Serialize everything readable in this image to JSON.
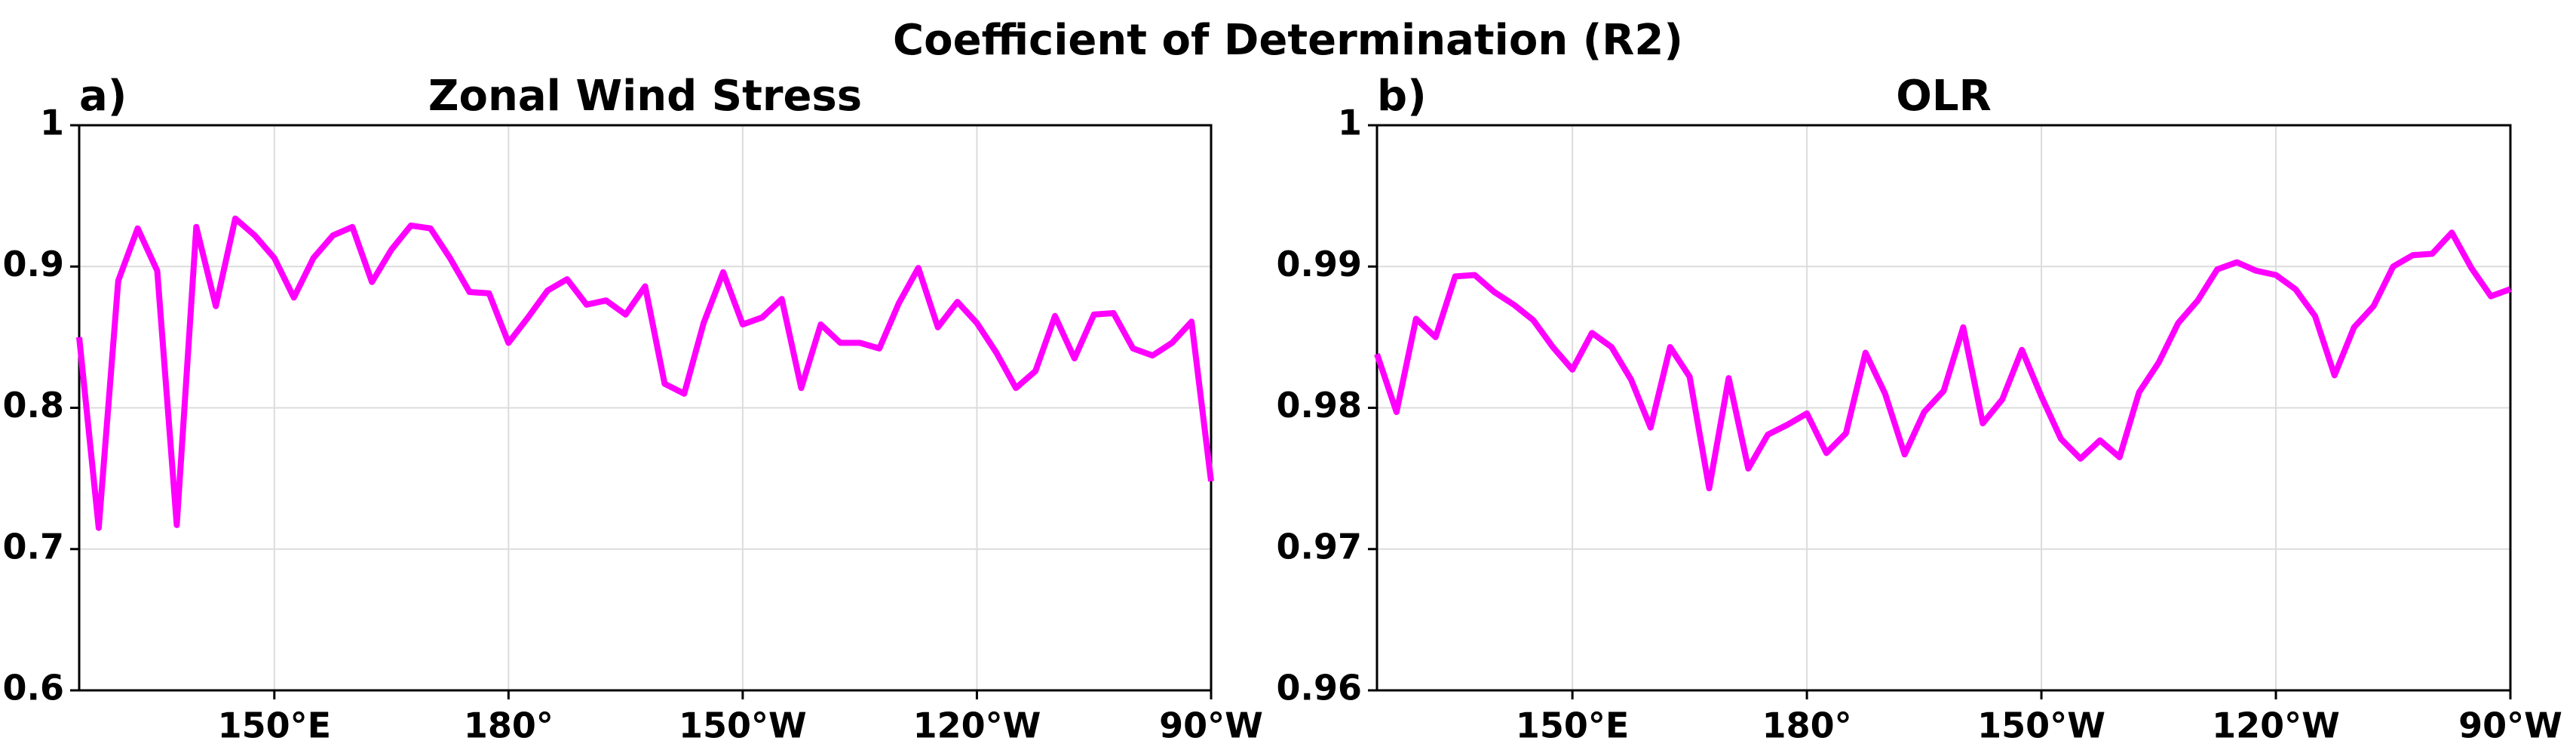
{
  "title": "Coefficient of Determination (R2)",
  "chart_data": [
    {
      "type": "line",
      "panel_label": "a)",
      "title": "Zonal Wind Stress",
      "color": "#ff00ff",
      "grid": true,
      "x": [
        125,
        127.5,
        130,
        132.5,
        135,
        137.5,
        140,
        142.5,
        145,
        147.5,
        150,
        152.5,
        155,
        157.5,
        160,
        162.5,
        165,
        167.5,
        170,
        172.5,
        175,
        177.5,
        180,
        182.5,
        185,
        187.5,
        190,
        192.5,
        195,
        197.5,
        200,
        202.5,
        205,
        207.5,
        210,
        212.5,
        215,
        217.5,
        220,
        222.5,
        225,
        227.5,
        230,
        232.5,
        235,
        237.5,
        240,
        242.5,
        245,
        247.5,
        250,
        252.5,
        255,
        257.5,
        260,
        262.5,
        265,
        267.5,
        270
      ],
      "values": [
        0.85,
        0.715,
        0.89,
        0.927,
        0.897,
        0.717,
        0.928,
        0.872,
        0.934,
        0.922,
        0.906,
        0.878,
        0.906,
        0.922,
        0.928,
        0.889,
        0.912,
        0.929,
        0.927,
        0.906,
        0.882,
        0.881,
        0.846,
        0.864,
        0.883,
        0.891,
        0.873,
        0.876,
        0.866,
        0.886,
        0.817,
        0.81,
        0.86,
        0.896,
        0.859,
        0.864,
        0.877,
        0.814,
        0.859,
        0.846,
        0.846,
        0.842,
        0.874,
        0.899,
        0.857,
        0.875,
        0.86,
        0.839,
        0.814,
        0.826,
        0.865,
        0.835,
        0.866,
        0.867,
        0.842,
        0.837,
        0.846,
        0.861,
        0.748
      ],
      "xlim": [
        125,
        270
      ],
      "xticks": [
        {
          "value": 150,
          "label": "150°E"
        },
        {
          "value": 180,
          "label": "180°"
        },
        {
          "value": 210,
          "label": "150°W"
        },
        {
          "value": 240,
          "label": "120°W"
        },
        {
          "value": 270,
          "label": "90°W"
        }
      ],
      "ylim": [
        0.6,
        1
      ],
      "yticks": [
        0.6,
        0.7,
        0.8,
        0.9,
        1
      ]
    },
    {
      "type": "line",
      "panel_label": "b)",
      "title": "OLR",
      "color": "#ff00ff",
      "grid": true,
      "x": [
        125,
        127.5,
        130,
        132.5,
        135,
        137.5,
        140,
        142.5,
        145,
        147.5,
        150,
        152.5,
        155,
        157.5,
        160,
        162.5,
        165,
        167.5,
        170,
        172.5,
        175,
        177.5,
        180,
        182.5,
        185,
        187.5,
        190,
        192.5,
        195,
        197.5,
        200,
        202.5,
        205,
        207.5,
        210,
        212.5,
        215,
        217.5,
        220,
        222.5,
        225,
        227.5,
        230,
        232.5,
        235,
        237.5,
        240,
        242.5,
        245,
        247.5,
        250,
        252.5,
        255,
        257.5,
        260,
        262.5,
        265,
        267.5,
        270
      ],
      "values": [
        0.9838,
        0.9797,
        0.9863,
        0.985,
        0.9893,
        0.9894,
        0.9882,
        0.9873,
        0.9862,
        0.9843,
        0.9827,
        0.9853,
        0.9843,
        0.982,
        0.9786,
        0.9843,
        0.9822,
        0.9743,
        0.9821,
        0.9757,
        0.9781,
        0.9788,
        0.9796,
        0.9768,
        0.9782,
        0.9839,
        0.981,
        0.9767,
        0.9797,
        0.9812,
        0.9857,
        0.9789,
        0.9806,
        0.9841,
        0.9808,
        0.9778,
        0.9764,
        0.9777,
        0.9765,
        0.9811,
        0.9832,
        0.986,
        0.9876,
        0.9898,
        0.9903,
        0.9897,
        0.9894,
        0.9884,
        0.9865,
        0.9823,
        0.9857,
        0.9872,
        0.99,
        0.9908,
        0.9909,
        0.9924,
        0.9899,
        0.9879,
        0.9884
      ],
      "xlim": [
        125,
        270
      ],
      "xticks": [
        {
          "value": 150,
          "label": "150°E"
        },
        {
          "value": 180,
          "label": "180°"
        },
        {
          "value": 210,
          "label": "150°W"
        },
        {
          "value": 240,
          "label": "120°W"
        },
        {
          "value": 270,
          "label": "90°W"
        }
      ],
      "ylim": [
        0.96,
        1
      ],
      "yticks": [
        0.96,
        0.97,
        0.98,
        0.99,
        1
      ]
    }
  ]
}
